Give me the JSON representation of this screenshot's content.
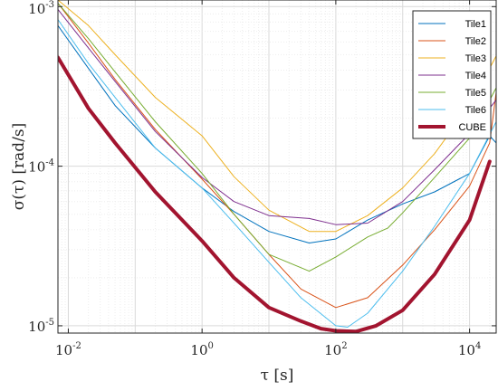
{
  "chart_data": {
    "type": "line",
    "title": "",
    "xlabel": "τ [s]",
    "ylabel": "σ(τ) [rad/s]",
    "xscale": "log",
    "yscale": "log",
    "xlim": [
      0.007,
      25000
    ],
    "ylim": [
      9e-06,
      0.0011
    ],
    "grid": "on (major and minor)",
    "legend_position": "top-right",
    "x_ticks": [
      {
        "base": "10",
        "exp": "-2",
        "value": 0.01
      },
      {
        "base": "10",
        "exp": "0",
        "value": 1
      },
      {
        "base": "10",
        "exp": "2",
        "value": 100
      },
      {
        "base": "10",
        "exp": "4",
        "value": 10000
      }
    ],
    "y_ticks": [
      {
        "base": "10",
        "exp": "-3",
        "value": 0.001
      },
      {
        "base": "10",
        "exp": "-4",
        "value": 0.0001
      },
      {
        "base": "10",
        "exp": "-5",
        "value": 1e-05
      }
    ],
    "series": [
      {
        "name": "Tile1",
        "color": "#0072BD",
        "width": 1,
        "x": [
          0.007,
          0.02,
          0.05,
          0.2,
          1,
          3,
          10,
          40,
          100,
          300,
          1000,
          3000,
          10000,
          20000,
          25000
        ],
        "y": [
          0.00076,
          0.00041,
          0.00024,
          0.00013,
          7.3e-05,
          5.2e-05,
          3.9e-05,
          3.3e-05,
          3.5e-05,
          4.6e-05,
          5.8e-05,
          6.9e-05,
          9e-05,
          0.000155,
          0.00014
        ]
      },
      {
        "name": "Tile2",
        "color": "#D95319",
        "width": 1,
        "x": [
          0.007,
          0.02,
          0.05,
          0.2,
          1,
          3,
          10,
          30,
          100,
          300,
          1000,
          3000,
          10000,
          20000,
          25000
        ],
        "y": [
          0.00105,
          0.00059,
          0.00035,
          0.00017,
          8.3e-05,
          5e-05,
          2.8e-05,
          1.7e-05,
          1.3e-05,
          1.5e-05,
          2.4e-05,
          4e-05,
          7.5e-05,
          0.00014,
          0.00029
        ]
      },
      {
        "name": "Tile3",
        "color": "#EDB120",
        "width": 1,
        "x": [
          0.007,
          0.02,
          0.05,
          0.2,
          1,
          3,
          10,
          40,
          100,
          300,
          1000,
          3000,
          10000,
          25000
        ],
        "y": [
          0.0011,
          0.00076,
          0.0005,
          0.00027,
          0.000155,
          8.6e-05,
          5.3e-05,
          3.9e-05,
          3.9e-05,
          4.9e-05,
          7.3e-05,
          0.00012,
          0.00024,
          0.00049
        ]
      },
      {
        "name": "Tile4",
        "color": "#7E2F8E",
        "width": 1,
        "x": [
          0.007,
          0.02,
          0.05,
          0.2,
          1,
          3,
          10,
          40,
          100,
          300,
          1000,
          3000,
          10000,
          25000
        ],
        "y": [
          0.00096,
          0.00055,
          0.00034,
          0.000165,
          8.5e-05,
          6e-05,
          4.9e-05,
          4.7e-05,
          4.3e-05,
          4.4e-05,
          6e-05,
          9.5e-05,
          0.00016,
          0.00026
        ]
      },
      {
        "name": "Tile5",
        "color": "#77AC30",
        "width": 1,
        "x": [
          0.007,
          0.02,
          0.05,
          0.2,
          1,
          3,
          10,
          40,
          100,
          300,
          600,
          1000,
          3000,
          10000,
          25000
        ],
        "y": [
          0.00105,
          0.00063,
          0.00039,
          0.00019,
          9e-05,
          5e-05,
          2.8e-05,
          2.2e-05,
          2.7e-05,
          3.6e-05,
          4.1e-05,
          5.1e-05,
          8.5e-05,
          0.00015,
          0.00031
        ]
      },
      {
        "name": "Tile6",
        "color": "#4DBEEE",
        "width": 1,
        "x": [
          0.007,
          0.02,
          0.05,
          0.2,
          1,
          3,
          10,
          30,
          100,
          150,
          300,
          1000,
          3000,
          10000,
          25000
        ],
        "y": [
          0.00083,
          0.00044,
          0.00027,
          0.00013,
          7.3e-05,
          4.4e-05,
          2.5e-05,
          1.5e-05,
          1e-05,
          9.8e-06,
          1.2e-05,
          2.2e-05,
          4.2e-05,
          9e-05,
          0.00019
        ]
      },
      {
        "name": "CUBE",
        "color": "#A2142F",
        "width": 4,
        "x": [
          0.007,
          0.02,
          0.05,
          0.2,
          1,
          3,
          10,
          30,
          60,
          100,
          200,
          400,
          1000,
          3000,
          10000,
          20000
        ],
        "y": [
          0.00048,
          0.00023,
          0.00014,
          6.9e-05,
          3.4e-05,
          2e-05,
          1.3e-05,
          1.07e-05,
          9.6e-06,
          9.3e-06,
          9.2e-06,
          1e-05,
          1.25e-05,
          2.1e-05,
          4.6e-05,
          0.000107
        ]
      }
    ]
  }
}
